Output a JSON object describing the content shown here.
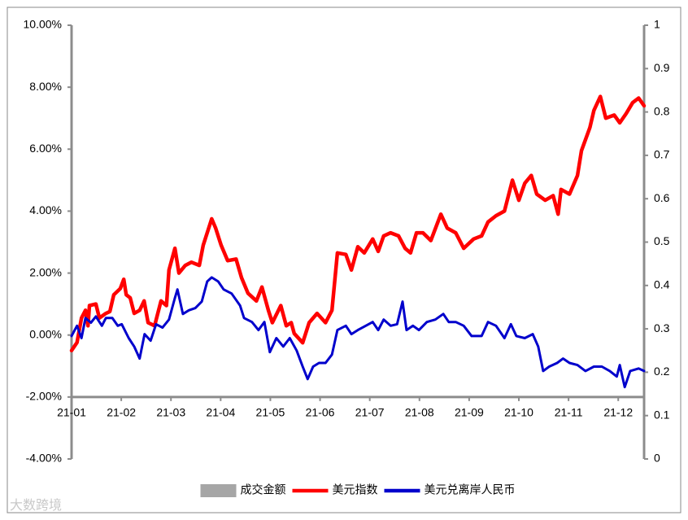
{
  "chart_data": {
    "type": "line",
    "watermark": "大数跨境",
    "xlim": [
      0,
      11.52
    ],
    "xticks": [
      {
        "value": 0,
        "label": "21-01"
      },
      {
        "value": 1,
        "label": "21-02"
      },
      {
        "value": 2,
        "label": "21-03"
      },
      {
        "value": 3,
        "label": "21-04"
      },
      {
        "value": 4,
        "label": "21-05"
      },
      {
        "value": 5,
        "label": "21-06"
      },
      {
        "value": 6,
        "label": "21-07"
      },
      {
        "value": 7,
        "label": "21-08"
      },
      {
        "value": 8,
        "label": "21-09"
      },
      {
        "value": 9,
        "label": "21-10"
      },
      {
        "value": 10,
        "label": "21-11"
      },
      {
        "value": 11,
        "label": "21-12"
      }
    ],
    "ylim": [
      -4,
      10
    ],
    "yticks": [
      {
        "value": -4,
        "label": "-4.00%"
      },
      {
        "value": -2,
        "label": "-2.00%"
      },
      {
        "value": 0,
        "label": "0.00%"
      },
      {
        "value": 2,
        "label": "2.00%"
      },
      {
        "value": 4,
        "label": "4.00%"
      },
      {
        "value": 6,
        "label": "6.00%"
      },
      {
        "value": 8,
        "label": "8.00%"
      },
      {
        "value": 10,
        "label": "10.00%"
      }
    ],
    "y2lim": [
      0,
      1
    ],
    "y2ticks": [
      0,
      0.1,
      0.2,
      0.3,
      0.4,
      0.5,
      0.6,
      0.7,
      0.8,
      0.9,
      1
    ],
    "xaxis_position": -2,
    "grid": false,
    "legend": "bottom",
    "series": [
      {
        "name": "成交金额",
        "color": "#a6a6a6",
        "axis": "y2"
      },
      {
        "name": "美元指数",
        "color": "#ff0000",
        "x": [
          0,
          0.11,
          0.2,
          0.28,
          0.33,
          0.36,
          0.49,
          0.56,
          0.69,
          0.77,
          0.85,
          0.98,
          1.05,
          1.1,
          1.18,
          1.26,
          1.37,
          1.46,
          1.54,
          1.67,
          1.8,
          1.91,
          1.96,
          2.08,
          2.16,
          2.29,
          2.41,
          2.57,
          2.65,
          2.73,
          2.82,
          2.9,
          3.01,
          3.14,
          3.31,
          3.42,
          3.55,
          3.72,
          3.83,
          3.96,
          4.04,
          4.21,
          4.32,
          4.42,
          4.48,
          4.65,
          4.78,
          4.94,
          5.11,
          5.24,
          5.35,
          5.52,
          5.63,
          5.76,
          5.89,
          6.06,
          6.17,
          6.28,
          6.42,
          6.58,
          6.71,
          6.82,
          6.94,
          7.07,
          7.23,
          7.43,
          7.56,
          7.73,
          7.89,
          8.09,
          8.25,
          8.38,
          8.54,
          8.71,
          8.87,
          9.0,
          9.12,
          9.25,
          9.36,
          9.53,
          9.69,
          9.79,
          9.85,
          10.02,
          10.18,
          10.26,
          10.43,
          10.51,
          10.64,
          10.75,
          10.92,
          11.03,
          11.16,
          11.29,
          11.41,
          11.52
        ],
        "values": [
          -0.5,
          -0.24,
          0.55,
          0.8,
          0.3,
          0.95,
          1.0,
          0.55,
          0.7,
          0.76,
          1.3,
          1.5,
          1.8,
          1.3,
          1.2,
          0.7,
          0.8,
          1.1,
          0.4,
          0.3,
          1.1,
          0.95,
          2.1,
          2.8,
          2.0,
          2.25,
          2.35,
          2.25,
          2.9,
          3.3,
          3.75,
          3.45,
          2.9,
          2.4,
          2.45,
          1.85,
          1.35,
          1.1,
          1.55,
          0.8,
          0.4,
          0.95,
          0.3,
          0.4,
          0.05,
          -0.25,
          0.4,
          0.7,
          0.4,
          0.8,
          2.65,
          2.6,
          2.1,
          2.85,
          2.65,
          3.1,
          2.7,
          3.2,
          3.3,
          3.2,
          2.8,
          2.65,
          3.3,
          3.3,
          3.05,
          3.9,
          3.45,
          3.3,
          2.8,
          3.1,
          3.2,
          3.65,
          3.85,
          4.0,
          5.0,
          4.35,
          4.9,
          5.15,
          4.55,
          4.35,
          4.5,
          3.9,
          4.7,
          4.55,
          5.15,
          5.95,
          6.7,
          7.25,
          7.7,
          7.0,
          7.1,
          6.85,
          7.15,
          7.5,
          7.65,
          7.4
        ]
      },
      {
        "name": "美元兑离岸人民币",
        "color": "#0000cc",
        "x": [
          0,
          0.11,
          0.2,
          0.28,
          0.39,
          0.49,
          0.61,
          0.69,
          0.82,
          0.93,
          1.01,
          1.15,
          1.26,
          1.37,
          1.47,
          1.59,
          1.7,
          1.83,
          1.96,
          2.08,
          2.13,
          2.24,
          2.36,
          2.49,
          2.62,
          2.73,
          2.82,
          2.95,
          3.06,
          3.22,
          3.39,
          3.47,
          3.63,
          3.76,
          3.88,
          3.99,
          4.12,
          4.26,
          4.39,
          4.53,
          4.65,
          4.75,
          4.86,
          4.98,
          5.11,
          5.24,
          5.35,
          5.52,
          5.63,
          5.76,
          5.92,
          6.06,
          6.17,
          6.28,
          6.42,
          6.55,
          6.66,
          6.74,
          6.87,
          6.99,
          7.15,
          7.32,
          7.48,
          7.59,
          7.73,
          7.89,
          8.05,
          8.25,
          8.38,
          8.54,
          8.71,
          8.84,
          8.95,
          9.12,
          9.28,
          9.39,
          9.49,
          9.61,
          9.77,
          9.89,
          10.02,
          10.18,
          10.34,
          10.51,
          10.67,
          10.83,
          10.97,
          11.03,
          11.13,
          11.24,
          11.41,
          11.52
        ],
        "values": [
          -0.03,
          0.3,
          -0.1,
          0.55,
          0.4,
          0.6,
          0.3,
          0.55,
          0.55,
          0.3,
          0.35,
          -0.1,
          -0.37,
          -0.76,
          0.03,
          -0.18,
          0.35,
          0.24,
          0.5,
          1.2,
          1.47,
          0.68,
          0.8,
          0.87,
          1.08,
          1.73,
          1.86,
          1.73,
          1.47,
          1.34,
          0.95,
          0.55,
          0.42,
          0.16,
          0.42,
          -0.55,
          -0.1,
          -0.37,
          -0.1,
          -0.5,
          -1.02,
          -1.42,
          -1.02,
          -0.9,
          -0.9,
          -0.63,
          0.16,
          0.3,
          0.03,
          0.16,
          0.3,
          0.42,
          0.16,
          0.5,
          0.3,
          0.35,
          1.08,
          0.16,
          0.3,
          0.16,
          0.42,
          0.5,
          0.68,
          0.42,
          0.42,
          0.3,
          -0.03,
          -0.03,
          0.42,
          0.3,
          -0.1,
          0.35,
          -0.03,
          -0.1,
          0.03,
          -0.37,
          -1.16,
          -1.02,
          -0.9,
          -0.76,
          -0.9,
          -0.97,
          -1.16,
          -1.02,
          -1.02,
          -1.16,
          -1.34,
          -0.97,
          -1.68,
          -1.16,
          -1.08,
          -1.16
        ]
      }
    ]
  }
}
